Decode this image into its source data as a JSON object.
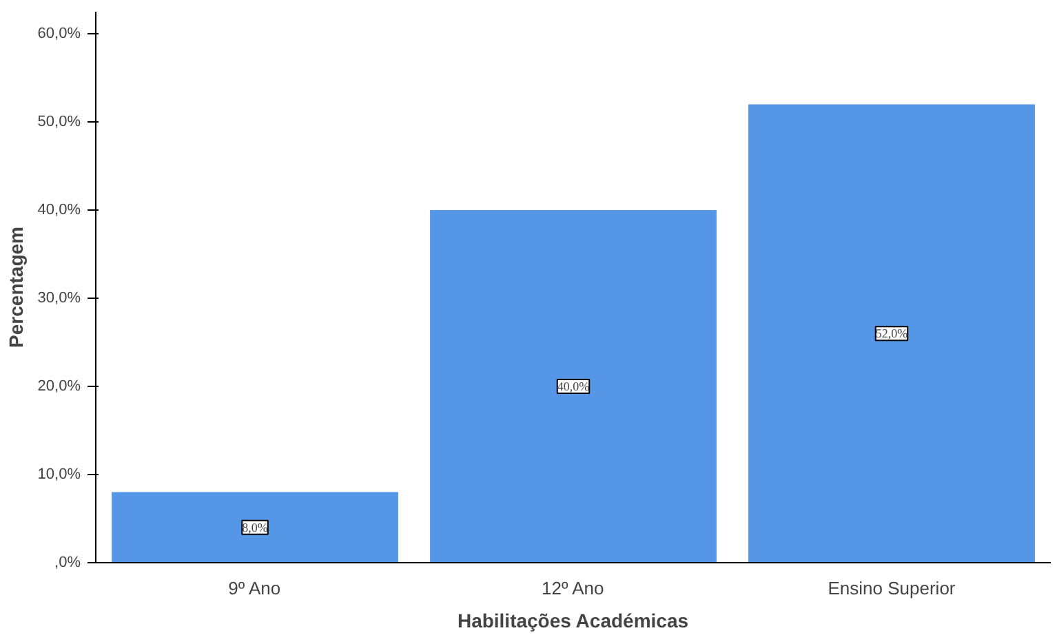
{
  "chart_data": {
    "type": "bar",
    "xlabel": "Habilitações Académicas",
    "ylabel": "Percentagem",
    "categories": [
      "9º Ano",
      "12º Ano",
      "Ensino Superior"
    ],
    "values": [
      8,
      40,
      52
    ],
    "value_labels": [
      "8,0%",
      "40,0%",
      "52,0%"
    ],
    "color": "#5596e6",
    "ylim": [
      0,
      62.5
    ],
    "yticks": [
      {
        "value": 0,
        "label": ",0%"
      },
      {
        "value": 10,
        "label": "10,0%"
      },
      {
        "value": 20,
        "label": "20,0%"
      },
      {
        "value": 30,
        "label": "30,0%"
      },
      {
        "value": 40,
        "label": "40,0%"
      },
      {
        "value": 50,
        "label": "50,0%"
      },
      {
        "value": 60,
        "label": "60,0%"
      }
    ],
    "grid": false
  }
}
